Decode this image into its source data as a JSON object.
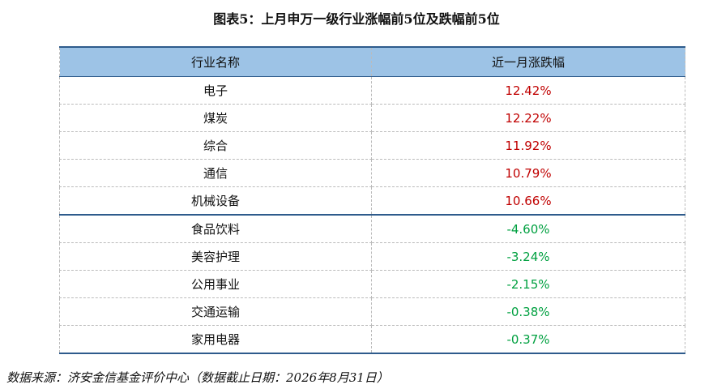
{
  "title": "图表5：上月申万一级行业涨幅前5位及跌幅前5位",
  "table": {
    "header": [
      "行业名称",
      "近一月涨跌幅"
    ],
    "top_rows": [
      [
        "电子",
        "12.42%"
      ],
      [
        "煤炭",
        "12.22%"
      ],
      [
        "综合",
        "11.92%"
      ],
      [
        "通信",
        "10.79%"
      ],
      [
        "机械设备",
        "10.66%"
      ]
    ],
    "bottom_rows": [
      [
        "食品饮料",
        "-4.60%"
      ],
      [
        "美容护理",
        "-3.24%"
      ],
      [
        "公用事业",
        "-2.15%"
      ],
      [
        "交通运输",
        "-0.38%"
      ],
      [
        "家用电器",
        "-0.37%"
      ]
    ]
  },
  "source": "数据来源：济安金信基金评价中心（数据截止日期：2026年8月31日）"
}
